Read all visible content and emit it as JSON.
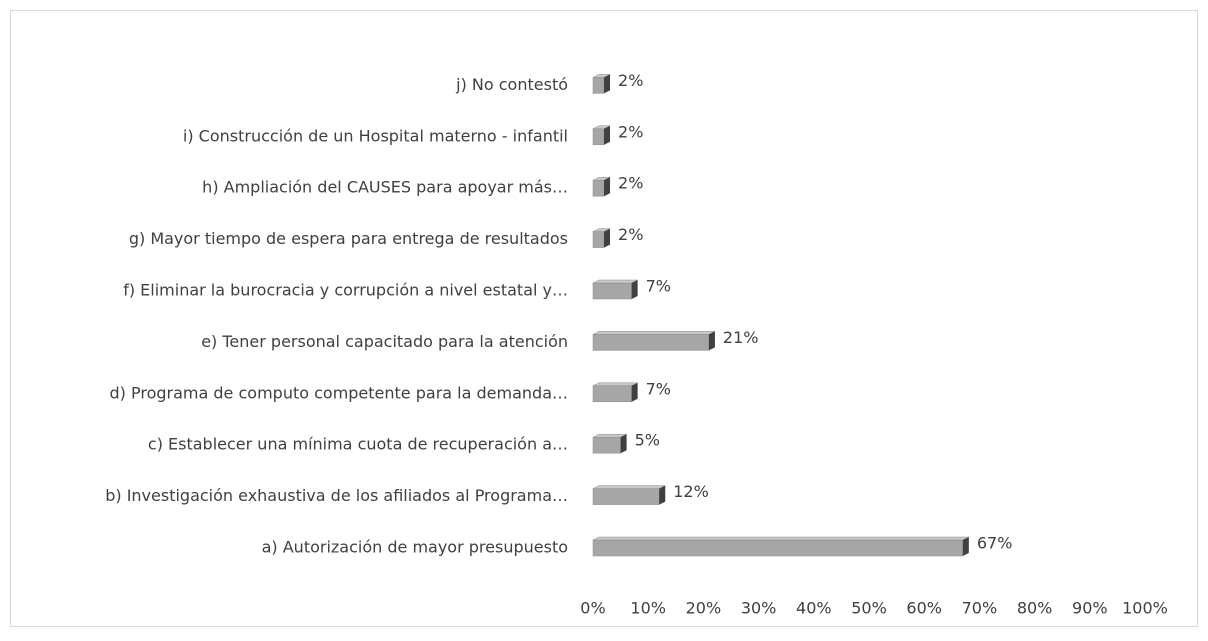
{
  "chart_data": {
    "type": "bar3d_horizontal",
    "categories": [
      "a) Autorización de mayor presupuesto",
      "b) Investigación exhaustiva de los afiliados al Programa…",
      "c) Establecer una mínima cuota de recuperación a…",
      "d) Programa de computo competente para la demanda…",
      "e) Tener personal capacitado para la atención",
      "f) Eliminar la burocracia y corrupción a nivel estatal y…",
      "g) Mayor tiempo de espera para entrega de resultados",
      "h) Ampliación del CAUSES para apoyar más…",
      "i) Construcción de un Hospital materno - infantil",
      "j) No contestó"
    ],
    "values": [
      67,
      12,
      5,
      7,
      21,
      7,
      2,
      2,
      2,
      2
    ],
    "value_labels": [
      "67%",
      "12%",
      "5%",
      "7%",
      "21%",
      "7%",
      "2%",
      "2%",
      "2%",
      "2%"
    ],
    "color": "#a6a6a6",
    "xlim": [
      0,
      100
    ],
    "xticks": [
      {
        "value": 0,
        "label": "0%"
      },
      {
        "value": 10,
        "label": "10%"
      },
      {
        "value": 20,
        "label": "20%"
      },
      {
        "value": 30,
        "label": "30%"
      },
      {
        "value": 40,
        "label": "40%"
      },
      {
        "value": 50,
        "label": "50%"
      },
      {
        "value": 60,
        "label": "60%"
      },
      {
        "value": 70,
        "label": "70%"
      },
      {
        "value": 80,
        "label": "80%"
      },
      {
        "value": 90,
        "label": "90%"
      },
      {
        "value": 100,
        "label": "100%"
      }
    ],
    "grid": false
  }
}
